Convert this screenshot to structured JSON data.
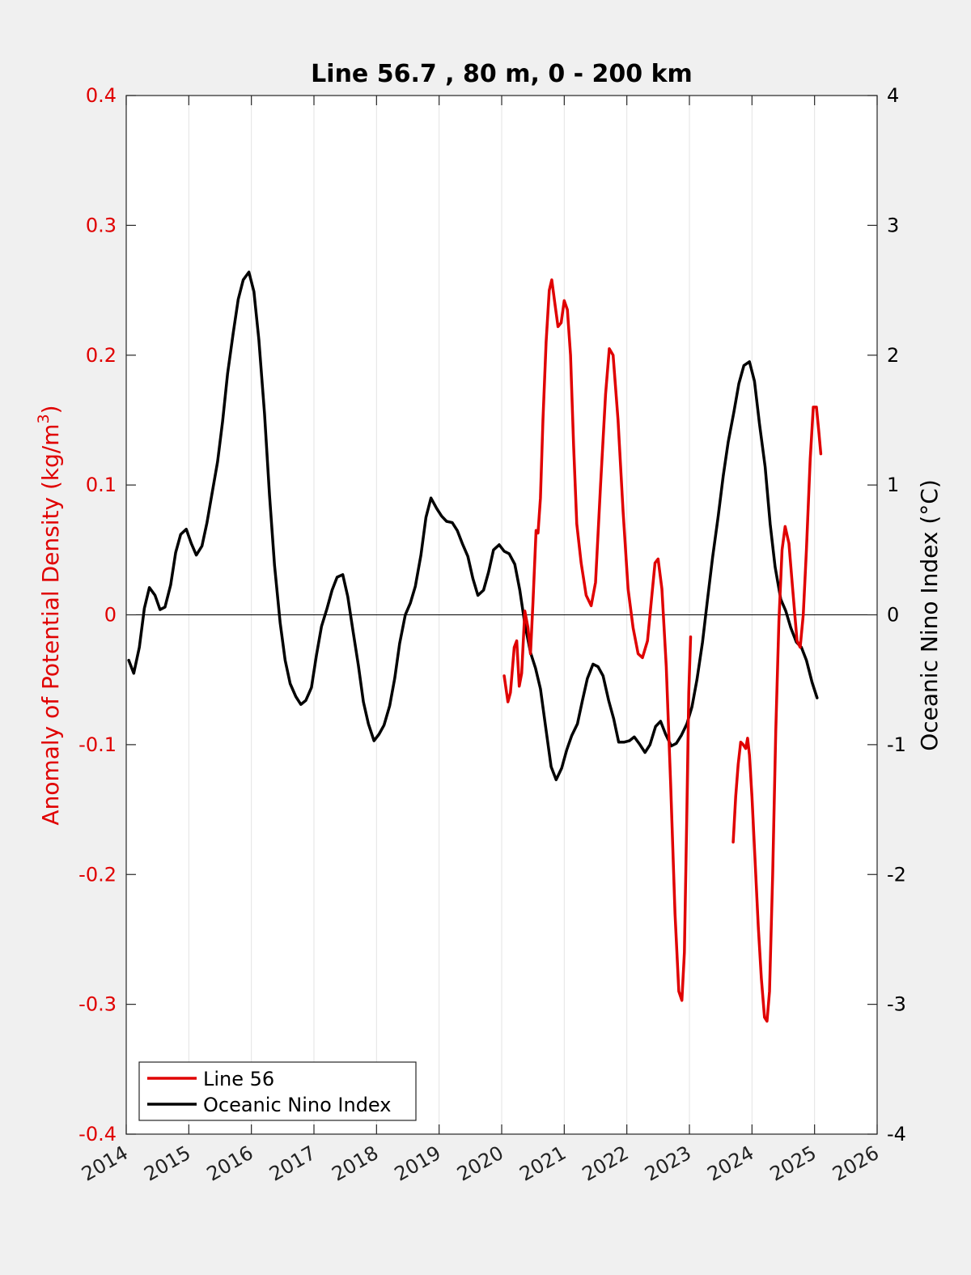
{
  "chart_data": {
    "type": "line",
    "title": "Line 56.7 , 80 m, 0 - 200 km",
    "ylabel_left": "Anomaly of Potential Density (kg/m",
    "ylabel_left_sup": "3",
    "ylabel_left_close": ")",
    "ylabel_right": "Oceanic Nino Index (°C)",
    "xlim": [
      2014,
      2026
    ],
    "ylim_left": [
      -0.4,
      0.4
    ],
    "ylim_right": [
      -4,
      4
    ],
    "x_ticks": [
      "2014",
      "2015",
      "2016",
      "2017",
      "2018",
      "2019",
      "2020",
      "2021",
      "2022",
      "2023",
      "2024",
      "2025",
      "2026"
    ],
    "y_left_ticks": [
      "0.4",
      "0.3",
      "0.2",
      "0.1",
      "0",
      "-0.1",
      "-0.2",
      "-0.3",
      "-0.4"
    ],
    "y_right_ticks": [
      "4",
      "3",
      "2",
      "1",
      "0",
      "-1",
      "-2",
      "-3",
      "-4"
    ],
    "grid": "vertical",
    "legend_position": "bottom-left",
    "colors": {
      "line56": "#e00000",
      "oni": "#000000"
    },
    "series": [
      {
        "name": "Line 56",
        "axis": "left",
        "segments": [
          [
            [
              2020.04,
              -0.047
            ],
            [
              2020.1,
              -0.067
            ],
            [
              2020.14,
              -0.06
            ],
            [
              2020.2,
              -0.025
            ],
            [
              2020.24,
              -0.02
            ],
            [
              2020.28,
              -0.055
            ],
            [
              2020.32,
              -0.045
            ],
            [
              2020.37,
              0.003
            ],
            [
              2020.42,
              -0.01
            ],
            [
              2020.46,
              -0.03
            ],
            [
              2020.5,
              0.01
            ],
            [
              2020.55,
              0.065
            ],
            [
              2020.58,
              0.063
            ],
            [
              2020.62,
              0.09
            ],
            [
              2020.66,
              0.15
            ],
            [
              2020.71,
              0.21
            ],
            [
              2020.76,
              0.25
            ],
            [
              2020.8,
              0.258
            ],
            [
              2020.85,
              0.24
            ],
            [
              2020.9,
              0.222
            ],
            [
              2020.95,
              0.225
            ],
            [
              2021.0,
              0.242
            ],
            [
              2021.05,
              0.235
            ],
            [
              2021.1,
              0.2
            ],
            [
              2021.15,
              0.13
            ],
            [
              2021.2,
              0.07
            ],
            [
              2021.27,
              0.04
            ],
            [
              2021.35,
              0.015
            ],
            [
              2021.43,
              0.007
            ],
            [
              2021.5,
              0.025
            ],
            [
              2021.58,
              0.1
            ],
            [
              2021.66,
              0.17
            ],
            [
              2021.72,
              0.205
            ],
            [
              2021.78,
              0.2
            ],
            [
              2021.86,
              0.15
            ],
            [
              2021.94,
              0.08
            ],
            [
              2022.02,
              0.02
            ],
            [
              2022.1,
              -0.01
            ],
            [
              2022.18,
              -0.03
            ],
            [
              2022.25,
              -0.033
            ],
            [
              2022.33,
              -0.02
            ],
            [
              2022.4,
              0.015
            ],
            [
              2022.45,
              0.04
            ],
            [
              2022.5,
              0.043
            ],
            [
              2022.56,
              0.02
            ],
            [
              2022.63,
              -0.04
            ],
            [
              2022.7,
              -0.13
            ],
            [
              2022.77,
              -0.23
            ],
            [
              2022.83,
              -0.29
            ],
            [
              2022.88,
              -0.297
            ],
            [
              2022.92,
              -0.26
            ],
            [
              2022.96,
              -0.15
            ],
            [
              2022.99,
              -0.06
            ],
            [
              2023.02,
              -0.017
            ]
          ],
          [
            [
              2023.7,
              -0.175
            ],
            [
              2023.74,
              -0.14
            ],
            [
              2023.78,
              -0.115
            ],
            [
              2023.82,
              -0.098
            ],
            [
              2023.86,
              -0.1
            ],
            [
              2023.9,
              -0.103
            ],
            [
              2023.93,
              -0.095
            ],
            [
              2023.96,
              -0.108
            ],
            [
              2024.0,
              -0.14
            ],
            [
              2024.05,
              -0.19
            ],
            [
              2024.1,
              -0.24
            ],
            [
              2024.15,
              -0.28
            ],
            [
              2024.2,
              -0.31
            ],
            [
              2024.24,
              -0.313
            ],
            [
              2024.28,
              -0.29
            ],
            [
              2024.33,
              -0.2
            ],
            [
              2024.38,
              -0.09
            ],
            [
              2024.43,
              -0.005
            ],
            [
              2024.48,
              0.05
            ],
            [
              2024.53,
              0.068
            ],
            [
              2024.59,
              0.055
            ],
            [
              2024.65,
              0.02
            ],
            [
              2024.72,
              -0.02
            ],
            [
              2024.77,
              -0.025
            ],
            [
              2024.82,
              0.0
            ],
            [
              2024.87,
              0.05
            ],
            [
              2024.93,
              0.12
            ],
            [
              2024.98,
              0.16
            ],
            [
              2025.03,
              0.16
            ],
            [
              2025.07,
              0.14
            ],
            [
              2025.1,
              0.124
            ]
          ]
        ]
      },
      {
        "name": "Oceanic Nino Index",
        "axis": "right",
        "segments": [
          [
            [
              2014.04,
              -0.35
            ],
            [
              2014.12,
              -0.45
            ],
            [
              2014.21,
              -0.25
            ],
            [
              2014.29,
              0.05
            ],
            [
              2014.37,
              0.21
            ],
            [
              2014.46,
              0.15
            ],
            [
              2014.54,
              0.04
            ],
            [
              2014.62,
              0.06
            ],
            [
              2014.71,
              0.23
            ],
            [
              2014.79,
              0.48
            ],
            [
              2014.87,
              0.62
            ],
            [
              2014.96,
              0.66
            ],
            [
              2015.04,
              0.55
            ],
            [
              2015.12,
              0.46
            ],
            [
              2015.21,
              0.53
            ],
            [
              2015.29,
              0.71
            ],
            [
              2015.37,
              0.93
            ],
            [
              2015.46,
              1.18
            ],
            [
              2015.54,
              1.49
            ],
            [
              2015.62,
              1.86
            ],
            [
              2015.71,
              2.17
            ],
            [
              2015.79,
              2.43
            ],
            [
              2015.87,
              2.58
            ],
            [
              2015.96,
              2.64
            ],
            [
              2016.04,
              2.49
            ],
            [
              2016.12,
              2.12
            ],
            [
              2016.21,
              1.55
            ],
            [
              2016.29,
              0.92
            ],
            [
              2016.37,
              0.38
            ],
            [
              2016.46,
              -0.06
            ],
            [
              2016.54,
              -0.35
            ],
            [
              2016.62,
              -0.53
            ],
            [
              2016.71,
              -0.63
            ],
            [
              2016.79,
              -0.69
            ],
            [
              2016.87,
              -0.66
            ],
            [
              2016.96,
              -0.56
            ],
            [
              2017.04,
              -0.31
            ],
            [
              2017.12,
              -0.09
            ],
            [
              2017.21,
              0.05
            ],
            [
              2017.29,
              0.19
            ],
            [
              2017.37,
              0.29
            ],
            [
              2017.46,
              0.31
            ],
            [
              2017.54,
              0.14
            ],
            [
              2017.62,
              -0.11
            ],
            [
              2017.71,
              -0.39
            ],
            [
              2017.79,
              -0.67
            ],
            [
              2017.87,
              -0.84
            ],
            [
              2017.96,
              -0.97
            ],
            [
              2018.04,
              -0.92
            ],
            [
              2018.12,
              -0.85
            ],
            [
              2018.21,
              -0.7
            ],
            [
              2018.29,
              -0.49
            ],
            [
              2018.37,
              -0.22
            ],
            [
              2018.46,
              0.0
            ],
            [
              2018.54,
              0.09
            ],
            [
              2018.62,
              0.22
            ],
            [
              2018.71,
              0.46
            ],
            [
              2018.79,
              0.75
            ],
            [
              2018.87,
              0.9
            ],
            [
              2018.96,
              0.82
            ],
            [
              2019.04,
              0.76
            ],
            [
              2019.12,
              0.72
            ],
            [
              2019.21,
              0.71
            ],
            [
              2019.29,
              0.65
            ],
            [
              2019.37,
              0.55
            ],
            [
              2019.46,
              0.45
            ],
            [
              2019.54,
              0.28
            ],
            [
              2019.62,
              0.15
            ],
            [
              2019.71,
              0.19
            ],
            [
              2019.79,
              0.33
            ],
            [
              2019.87,
              0.5
            ],
            [
              2019.96,
              0.54
            ],
            [
              2020.04,
              0.49
            ],
            [
              2020.12,
              0.47
            ],
            [
              2020.21,
              0.39
            ],
            [
              2020.29,
              0.19
            ],
            [
              2020.37,
              -0.07
            ],
            [
              2020.46,
              -0.29
            ],
            [
              2020.54,
              -0.41
            ],
            [
              2020.62,
              -0.57
            ],
            [
              2020.71,
              -0.89
            ],
            [
              2020.79,
              -1.17
            ],
            [
              2020.87,
              -1.27
            ],
            [
              2020.96,
              -1.18
            ],
            [
              2021.04,
              -1.04
            ],
            [
              2021.12,
              -0.93
            ],
            [
              2021.21,
              -0.84
            ],
            [
              2021.29,
              -0.66
            ],
            [
              2021.37,
              -0.49
            ],
            [
              2021.46,
              -0.38
            ],
            [
              2021.54,
              -0.4
            ],
            [
              2021.62,
              -0.47
            ],
            [
              2021.71,
              -0.66
            ],
            [
              2021.79,
              -0.8
            ],
            [
              2021.87,
              -0.98
            ],
            [
              2021.96,
              -0.98
            ],
            [
              2022.04,
              -0.97
            ],
            [
              2022.12,
              -0.94
            ],
            [
              2022.21,
              -1.0
            ],
            [
              2022.29,
              -1.06
            ],
            [
              2022.37,
              -1.0
            ],
            [
              2022.46,
              -0.86
            ],
            [
              2022.54,
              -0.82
            ],
            [
              2022.62,
              -0.92
            ],
            [
              2022.71,
              -1.01
            ],
            [
              2022.79,
              -0.99
            ],
            [
              2022.87,
              -0.93
            ],
            [
              2022.96,
              -0.84
            ],
            [
              2023.04,
              -0.71
            ],
            [
              2023.12,
              -0.5
            ],
            [
              2023.21,
              -0.21
            ],
            [
              2023.29,
              0.12
            ],
            [
              2023.37,
              0.44
            ],
            [
              2023.46,
              0.76
            ],
            [
              2023.54,
              1.07
            ],
            [
              2023.62,
              1.33
            ],
            [
              2023.71,
              1.56
            ],
            [
              2023.79,
              1.78
            ],
            [
              2023.87,
              1.92
            ],
            [
              2023.96,
              1.95
            ],
            [
              2024.04,
              1.8
            ],
            [
              2024.12,
              1.47
            ],
            [
              2024.21,
              1.14
            ],
            [
              2024.29,
              0.7
            ],
            [
              2024.37,
              0.37
            ],
            [
              2024.46,
              0.12
            ],
            [
              2024.54,
              0.03
            ],
            [
              2024.62,
              -0.1
            ],
            [
              2024.71,
              -0.21
            ],
            [
              2024.79,
              -0.25
            ],
            [
              2024.87,
              -0.35
            ],
            [
              2024.96,
              -0.52
            ],
            [
              2025.04,
              -0.64
            ]
          ]
        ]
      }
    ]
  }
}
